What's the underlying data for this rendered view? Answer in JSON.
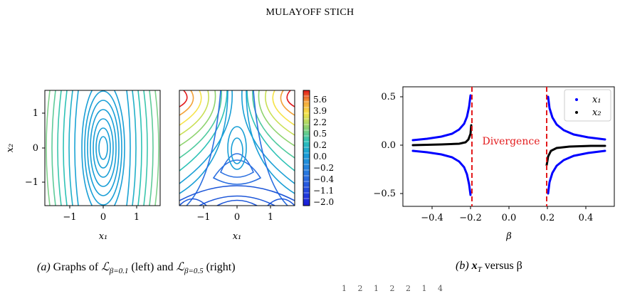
{
  "header": {
    "running_head": "MULAYOFF STICH"
  },
  "figure_a": {
    "left_plot": {
      "xticks": [
        "−1",
        "0",
        "1"
      ],
      "yticks": [
        "1",
        "0",
        "−1"
      ],
      "xlabel": "x₁",
      "ylabel": "x₂"
    },
    "right_plot": {
      "xticks": [
        "−1",
        "0",
        "1"
      ],
      "xlabel": "x₁"
    },
    "colorbar": {
      "ticks": [
        "5.6",
        "3.9",
        "2.2",
        "0.5",
        "0.2",
        "0.0",
        "−0.2",
        "−0.4",
        "−1.1",
        "−2.0"
      ]
    },
    "caption_prefix": "(a)",
    "caption_text_1": "Graphs of",
    "caption_L1": "ℒ",
    "caption_sub1": "β=0.1",
    "caption_text_2": "(left) and",
    "caption_L2": "ℒ",
    "caption_sub2": "β=0.5",
    "caption_text_3": "(right)"
  },
  "figure_b": {
    "xticks": [
      "−0.4",
      "−0.2",
      "0.0",
      "0.2",
      "0.4"
    ],
    "yticks": [
      "0.5",
      "0.0",
      "−0.5"
    ],
    "xlabel": "β",
    "divergence_label": "Divergence",
    "legend": [
      {
        "label": "x₁",
        "color": "#0000ff"
      },
      {
        "label": "x₂",
        "color": "#000000"
      }
    ],
    "caption_prefix": "(b)",
    "caption_var": "x",
    "caption_sub": "T",
    "caption_text": "versus β"
  },
  "bottom_fragment": "1  2  1  2  2  1  4",
  "chart_data": [
    {
      "type": "line",
      "title": "",
      "xlabel": "β",
      "ylabel": "",
      "xlim": [
        -0.5,
        0.5
      ],
      "ylim": [
        -0.6,
        0.6
      ],
      "vertical_lines": [
        -0.2,
        0.2
      ],
      "annotations": [
        "Divergence"
      ],
      "series": [
        {
          "name": "x₁",
          "description": "two symmetric hyperbola-like branches diverging toward ±0.5 near β=±0.2"
        },
        {
          "name": "x₂",
          "description": "near zero, bending toward ±0.3 close to β=±0.2"
        }
      ],
      "legend_position": "top-right"
    }
  ],
  "colors": {
    "blue": "#0000ff",
    "red_dashed": "#e31a1c",
    "divergence_text": "#e31a1c"
  }
}
